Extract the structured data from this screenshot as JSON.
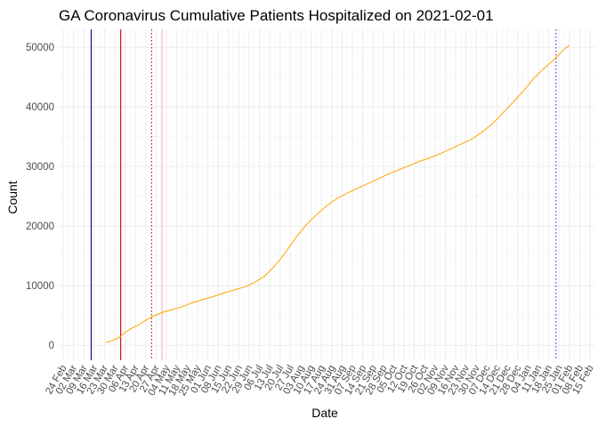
{
  "chart_data": {
    "type": "line",
    "title": "GA Coronavirus Cumulative Patients Hospitalized on 2021-02-01",
    "xlabel": "Date",
    "ylabel": "Count",
    "grid": true,
    "legend": "none",
    "xlim": [
      "2020-02-21",
      "2021-02-18"
    ],
    "ylim": [
      -2500,
      53000
    ],
    "y_ticks": [
      0,
      10000,
      20000,
      30000,
      40000,
      50000
    ],
    "x_tick_labels": [
      "24 Feb",
      "02 Mar",
      "09 Mar",
      "16 Mar",
      "23 Mar",
      "30 Mar",
      "06 Apr",
      "13 Apr",
      "20 Apr",
      "27 Apr",
      "04 May",
      "11 May",
      "18 May",
      "25 May",
      "01 Jun",
      "08 Jun",
      "15 Jun",
      "22 Jun",
      "29 Jun",
      "06 Jul",
      "13 Jul",
      "20 Jul",
      "27 Jul",
      "03 Aug",
      "10 Aug",
      "17 Aug",
      "24 Aug",
      "31 Aug",
      "07 Sep",
      "14 Sep",
      "21 Sep",
      "28 Sep",
      "05 Oct",
      "12 Oct",
      "19 Oct",
      "26 Oct",
      "02 Nov",
      "09 Nov",
      "16 Nov",
      "23 Nov",
      "30 Nov",
      "07 Dec",
      "14 Dec",
      "21 Dec",
      "28 Dec",
      "04 Jan",
      "11 Jan",
      "18 Jan",
      "25 Jan",
      "01 Feb",
      "08 Feb",
      "15 Feb"
    ],
    "x_tick_dates": [
      "2020-02-24",
      "2020-03-02",
      "2020-03-09",
      "2020-03-16",
      "2020-03-23",
      "2020-03-30",
      "2020-04-06",
      "2020-04-13",
      "2020-04-20",
      "2020-04-27",
      "2020-05-04",
      "2020-05-11",
      "2020-05-18",
      "2020-05-25",
      "2020-06-01",
      "2020-06-08",
      "2020-06-15",
      "2020-06-22",
      "2020-06-29",
      "2020-07-06",
      "2020-07-13",
      "2020-07-20",
      "2020-07-27",
      "2020-08-03",
      "2020-08-10",
      "2020-08-17",
      "2020-08-24",
      "2020-08-31",
      "2020-09-07",
      "2020-09-14",
      "2020-09-21",
      "2020-09-28",
      "2020-10-05",
      "2020-10-12",
      "2020-10-19",
      "2020-10-26",
      "2020-11-02",
      "2020-11-09",
      "2020-11-16",
      "2020-11-23",
      "2020-11-30",
      "2020-12-07",
      "2020-12-14",
      "2020-12-21",
      "2020-12-28",
      "2021-01-04",
      "2021-01-11",
      "2021-01-18",
      "2021-01-25",
      "2021-02-01",
      "2021-02-08",
      "2021-02-15"
    ],
    "series": [
      {
        "color": "#FFA500",
        "points": [
          [
            "2020-03-24",
            500
          ],
          [
            "2020-03-27",
            700
          ],
          [
            "2020-03-31",
            1100
          ],
          [
            "2020-04-03",
            1500
          ],
          [
            "2020-04-06",
            2200
          ],
          [
            "2020-04-10",
            2800
          ],
          [
            "2020-04-14",
            3300
          ],
          [
            "2020-04-18",
            3900
          ],
          [
            "2020-04-22",
            4500
          ],
          [
            "2020-04-26",
            5000
          ],
          [
            "2020-05-01",
            5500
          ],
          [
            "2020-05-08",
            6000
          ],
          [
            "2020-05-15",
            6500
          ],
          [
            "2020-05-22",
            7200
          ],
          [
            "2020-05-29",
            7700
          ],
          [
            "2020-06-05",
            8200
          ],
          [
            "2020-06-12",
            8800
          ],
          [
            "2020-06-19",
            9300
          ],
          [
            "2020-06-26",
            9800
          ],
          [
            "2020-07-03",
            10600
          ],
          [
            "2020-07-10",
            11700
          ],
          [
            "2020-07-17",
            13500
          ],
          [
            "2020-07-24",
            15700
          ],
          [
            "2020-07-31",
            18200
          ],
          [
            "2020-08-07",
            20300
          ],
          [
            "2020-08-14",
            22000
          ],
          [
            "2020-08-21",
            23500
          ],
          [
            "2020-08-28",
            24700
          ],
          [
            "2020-09-04",
            25600
          ],
          [
            "2020-09-11",
            26400
          ],
          [
            "2020-09-18",
            27200
          ],
          [
            "2020-09-25",
            28000
          ],
          [
            "2020-10-02",
            28800
          ],
          [
            "2020-10-09",
            29500
          ],
          [
            "2020-10-16",
            30200
          ],
          [
            "2020-10-23",
            30900
          ],
          [
            "2020-10-30",
            31500
          ],
          [
            "2020-11-06",
            32200
          ],
          [
            "2020-11-13",
            33000
          ],
          [
            "2020-11-20",
            33800
          ],
          [
            "2020-11-27",
            34600
          ],
          [
            "2020-12-04",
            35800
          ],
          [
            "2020-12-11",
            37200
          ],
          [
            "2020-12-18",
            39000
          ],
          [
            "2020-12-25",
            40800
          ],
          [
            "2021-01-01",
            42700
          ],
          [
            "2021-01-08",
            44800
          ],
          [
            "2021-01-15",
            46500
          ],
          [
            "2021-01-22",
            48000
          ],
          [
            "2021-01-29",
            49800
          ],
          [
            "2021-02-01",
            50300
          ]
        ]
      }
    ],
    "reference_lines": [
      {
        "date": "2020-03-14",
        "color": "#00008B",
        "style": "solid"
      },
      {
        "date": "2020-04-03",
        "color": "#CC0000",
        "style": "solid"
      },
      {
        "date": "2020-04-24",
        "color": "#CC0000",
        "style": "dotted"
      },
      {
        "date": "2020-05-01",
        "color": "#F4B6C2",
        "style": "solid"
      },
      {
        "date": "2021-01-23",
        "color": "#6A0DAD",
        "style": "dotted"
      }
    ]
  }
}
